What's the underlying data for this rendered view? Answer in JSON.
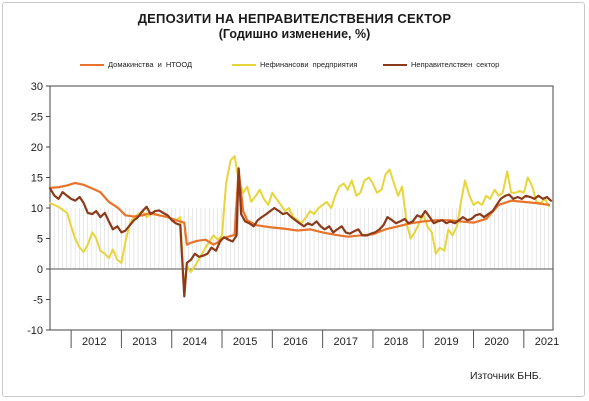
{
  "chart_data": {
    "type": "line",
    "title": "ДЕПОЗИТИ НА НЕПРАВИТЕЛСТВЕНИЯ СЕКТОР",
    "subtitle": "(Годишно изменение, %)",
    "source": "Източник БНБ.",
    "ylim": [
      -10,
      30
    ],
    "yticks": [
      30,
      25,
      20,
      15,
      10,
      5,
      0,
      -5,
      -10
    ],
    "xlim": [
      2011.58,
      2021.58
    ],
    "years": [
      "2012",
      "2013",
      "2014",
      "2015",
      "2016",
      "2017",
      "2018",
      "2019",
      "2020",
      "2021"
    ],
    "grid": "vertical-monthly",
    "legend_position": "top",
    "series": [
      {
        "name": "Домакинства и НТООД",
        "color": "#e8732a",
        "x": [
          2011.58,
          2011.75,
          2011.92,
          2012.08,
          2012.25,
          2012.42,
          2012.58,
          2012.75,
          2012.92,
          2013.08,
          2013.25,
          2013.42,
          2013.58,
          2013.75,
          2013.92,
          2014.08,
          2014.25,
          2014.3,
          2014.38,
          2014.5,
          2014.67,
          2014.83,
          2014.92,
          2015.0,
          2015.17,
          2015.25,
          2015.33,
          2015.42,
          2015.5,
          2015.67,
          2015.83,
          2016.0,
          2016.25,
          2016.5,
          2016.75,
          2017.0,
          2017.25,
          2017.5,
          2017.75,
          2018.0,
          2018.25,
          2018.5,
          2018.75,
          2019.0,
          2019.25,
          2019.5,
          2019.75,
          2020.0,
          2020.25,
          2020.5,
          2020.75,
          2021.0,
          2021.25,
          2021.5
        ],
        "y": [
          13.3,
          13.4,
          13.7,
          14.1,
          13.8,
          13.2,
          12.6,
          11.0,
          10.1,
          8.8,
          8.6,
          8.8,
          9.2,
          8.8,
          8.5,
          8.0,
          7.6,
          4.0,
          4.3,
          4.6,
          4.8,
          4.0,
          4.4,
          5.0,
          5.4,
          5.6,
          16.3,
          9.5,
          8.0,
          7.2,
          7.0,
          6.8,
          6.6,
          6.3,
          6.5,
          6.0,
          5.6,
          5.3,
          5.5,
          5.7,
          6.5,
          7.0,
          7.5,
          7.8,
          8.0,
          8.0,
          7.8,
          7.6,
          8.2,
          10.5,
          11.2,
          11.0,
          10.8,
          10.5
        ]
      },
      {
        "name": "Нефинансови предприятия",
        "color": "#e8d53b",
        "x": [
          2011.58,
          2011.75,
          2011.92,
          2012.0,
          2012.08,
          2012.17,
          2012.25,
          2012.33,
          2012.42,
          2012.5,
          2012.58,
          2012.67,
          2012.75,
          2012.83,
          2012.92,
          2013.0,
          2013.08,
          2013.17,
          2013.25,
          2013.42,
          2013.5,
          2013.58,
          2013.75,
          2013.92,
          2014.08,
          2014.17,
          2014.25,
          2014.3,
          2014.38,
          2014.5,
          2014.67,
          2014.83,
          2014.92,
          2015.0,
          2015.08,
          2015.17,
          2015.25,
          2015.33,
          2015.42,
          2015.5,
          2015.58,
          2015.67,
          2015.75,
          2015.83,
          2015.92,
          2016.0,
          2016.08,
          2016.17,
          2016.25,
          2016.33,
          2016.42,
          2016.5,
          2016.58,
          2016.67,
          2016.75,
          2016.83,
          2016.92,
          2017.0,
          2017.08,
          2017.17,
          2017.25,
          2017.33,
          2017.42,
          2017.5,
          2017.58,
          2017.67,
          2017.75,
          2017.83,
          2017.92,
          2018.0,
          2018.08,
          2018.17,
          2018.25,
          2018.33,
          2018.42,
          2018.5,
          2018.58,
          2018.67,
          2018.75,
          2018.83,
          2018.92,
          2019.0,
          2019.08,
          2019.17,
          2019.25,
          2019.33,
          2019.42,
          2019.5,
          2019.58,
          2019.67,
          2019.75,
          2019.83,
          2019.92,
          2020.0,
          2020.08,
          2020.17,
          2020.25,
          2020.33,
          2020.42,
          2020.5,
          2020.58,
          2020.67,
          2020.75,
          2020.83,
          2020.92,
          2021.0,
          2021.08,
          2021.17,
          2021.25,
          2021.33,
          2021.42,
          2021.5
        ],
        "y": [
          10.8,
          10.2,
          9.2,
          7.0,
          5.0,
          3.5,
          2.8,
          4.0,
          6.0,
          5.0,
          3.0,
          2.5,
          1.8,
          3.2,
          1.5,
          1.0,
          4.5,
          7.5,
          8.5,
          9.5,
          8.5,
          9.0,
          8.8,
          8.5,
          8.0,
          8.5,
          -4.0,
          0.5,
          -0.5,
          1.0,
          3.5,
          5.5,
          4.8,
          5.5,
          14.0,
          17.8,
          18.5,
          14.5,
          12.5,
          13.5,
          11.0,
          12.0,
          13.0,
          11.5,
          10.5,
          12.5,
          11.5,
          10.5,
          9.5,
          10.0,
          8.5,
          8.0,
          7.5,
          8.5,
          9.5,
          9.0,
          10.0,
          10.5,
          11.0,
          10.0,
          12.0,
          13.5,
          14.0,
          13.0,
          14.5,
          12.0,
          12.5,
          14.5,
          15.0,
          14.0,
          12.5,
          13.0,
          15.5,
          16.3,
          14.0,
          12.0,
          13.5,
          7.5,
          5.0,
          6.0,
          7.5,
          9.0,
          7.0,
          6.0,
          2.5,
          3.5,
          3.0,
          6.5,
          5.5,
          7.0,
          11.0,
          14.5,
          12.0,
          10.5,
          11.0,
          10.5,
          12.0,
          11.5,
          13.0,
          12.0,
          12.5,
          16.0,
          12.5,
          12.5,
          12.8,
          12.5,
          15.0,
          13.5,
          11.0,
          10.8,
          11.5,
          10.3
        ]
      },
      {
        "name": "Неправителствен сектор",
        "color": "#8b3a1a",
        "x": [
          2011.58,
          2011.67,
          2011.75,
          2011.83,
          2011.92,
          2012.0,
          2012.08,
          2012.17,
          2012.25,
          2012.33,
          2012.42,
          2012.5,
          2012.58,
          2012.67,
          2012.75,
          2012.83,
          2012.92,
          2013.0,
          2013.08,
          2013.17,
          2013.25,
          2013.33,
          2013.42,
          2013.5,
          2013.58,
          2013.67,
          2013.75,
          2013.83,
          2013.92,
          2014.0,
          2014.08,
          2014.17,
          2014.25,
          2014.3,
          2014.38,
          2014.46,
          2014.54,
          2014.63,
          2014.71,
          2014.79,
          2014.88,
          2014.96,
          2015.04,
          2015.13,
          2015.21,
          2015.29,
          2015.33,
          2015.38,
          2015.46,
          2015.54,
          2015.63,
          2015.71,
          2015.79,
          2015.88,
          2015.96,
          2016.04,
          2016.13,
          2016.21,
          2016.29,
          2016.38,
          2016.46,
          2016.54,
          2016.63,
          2016.71,
          2016.79,
          2016.88,
          2016.96,
          2017.04,
          2017.13,
          2017.21,
          2017.29,
          2017.38,
          2017.46,
          2017.54,
          2017.63,
          2017.71,
          2017.79,
          2017.88,
          2017.96,
          2018.04,
          2018.13,
          2018.21,
          2018.29,
          2018.38,
          2018.46,
          2018.54,
          2018.63,
          2018.71,
          2018.79,
          2018.88,
          2018.96,
          2019.04,
          2019.13,
          2019.21,
          2019.29,
          2019.38,
          2019.46,
          2019.54,
          2019.63,
          2019.71,
          2019.79,
          2019.88,
          2019.96,
          2020.04,
          2020.13,
          2020.21,
          2020.29,
          2020.38,
          2020.46,
          2020.54,
          2020.63,
          2020.71,
          2020.79,
          2020.88,
          2020.96,
          2021.04,
          2021.13,
          2021.21,
          2021.29,
          2021.38,
          2021.46,
          2021.54
        ],
        "y": [
          13.2,
          12.0,
          11.5,
          12.6,
          12.0,
          11.5,
          11.2,
          11.8,
          10.8,
          9.2,
          9.0,
          9.5,
          8.5,
          9.2,
          7.8,
          6.5,
          7.0,
          6.0,
          6.3,
          7.2,
          8.0,
          8.5,
          9.5,
          10.2,
          9.0,
          9.5,
          9.6,
          9.2,
          8.8,
          8.0,
          7.5,
          7.2,
          -4.5,
          1.0,
          1.5,
          2.5,
          2.0,
          2.2,
          2.5,
          3.5,
          3.0,
          4.5,
          5.2,
          4.8,
          4.5,
          5.5,
          16.5,
          9.0,
          7.8,
          7.5,
          7.0,
          8.0,
          8.5,
          9.0,
          9.5,
          10.0,
          9.5,
          9.0,
          9.2,
          8.5,
          8.0,
          7.5,
          7.0,
          7.5,
          7.2,
          7.8,
          7.0,
          6.5,
          7.0,
          6.0,
          6.5,
          7.0,
          6.0,
          5.8,
          6.2,
          6.5,
          5.5,
          5.5,
          5.8,
          6.0,
          6.5,
          7.2,
          8.5,
          8.0,
          7.5,
          7.8,
          8.2,
          7.5,
          7.8,
          8.8,
          8.5,
          9.5,
          8.5,
          7.5,
          7.8,
          8.0,
          7.5,
          7.8,
          7.5,
          8.0,
          8.5,
          8.0,
          8.2,
          8.8,
          9.0,
          8.5,
          9.0,
          9.5,
          10.5,
          11.5,
          12.0,
          12.2,
          11.5,
          11.8,
          11.5,
          12.0,
          11.8,
          11.5,
          12.0,
          11.5,
          11.8,
          11.2
        ]
      }
    ]
  }
}
